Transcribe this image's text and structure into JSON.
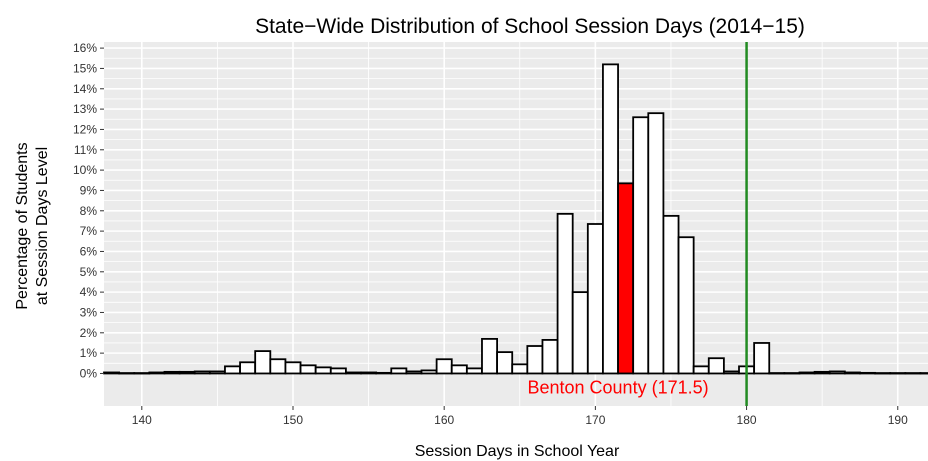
{
  "chart_data": {
    "type": "bar",
    "title": "State−Wide Distribution of School Session Days (2014−15)",
    "xlabel": "Session Days in School Year",
    "ylabel_lines": [
      "Percentage of Students",
      "at Session Days Level"
    ],
    "xlim": [
      137.5,
      192
    ],
    "ylim": [
      -1.6,
      16.3
    ],
    "x_ticks": [
      140,
      150,
      160,
      170,
      180,
      190
    ],
    "y_ticks": [
      0,
      1,
      2,
      3,
      4,
      5,
      6,
      7,
      8,
      9,
      10,
      11,
      12,
      13,
      14,
      15,
      16
    ],
    "y_tick_labels": [
      "0%",
      "1%",
      "2%",
      "3%",
      "4%",
      "5%",
      "6%",
      "7%",
      "8%",
      "9%",
      "10%",
      "11%",
      "12%",
      "13%",
      "14%",
      "15%",
      "16%"
    ],
    "bin_width": 1,
    "bins": [
      {
        "x": 138,
        "value": 0.05
      },
      {
        "x": 139,
        "value": 0.02
      },
      {
        "x": 140,
        "value": 0.02
      },
      {
        "x": 141,
        "value": 0.05
      },
      {
        "x": 142,
        "value": 0.08
      },
      {
        "x": 143,
        "value": 0.08
      },
      {
        "x": 144,
        "value": 0.1
      },
      {
        "x": 145,
        "value": 0.1
      },
      {
        "x": 146,
        "value": 0.35
      },
      {
        "x": 147,
        "value": 0.55
      },
      {
        "x": 148,
        "value": 1.1
      },
      {
        "x": 149,
        "value": 0.7
      },
      {
        "x": 150,
        "value": 0.55
      },
      {
        "x": 151,
        "value": 0.4
      },
      {
        "x": 152,
        "value": 0.3
      },
      {
        "x": 153,
        "value": 0.25
      },
      {
        "x": 154,
        "value": 0.05
      },
      {
        "x": 155,
        "value": 0.05
      },
      {
        "x": 156,
        "value": 0.03
      },
      {
        "x": 157,
        "value": 0.25
      },
      {
        "x": 158,
        "value": 0.1
      },
      {
        "x": 159,
        "value": 0.15
      },
      {
        "x": 160,
        "value": 0.7
      },
      {
        "x": 161,
        "value": 0.4
      },
      {
        "x": 162,
        "value": 0.25
      },
      {
        "x": 163,
        "value": 1.7
      },
      {
        "x": 164,
        "value": 1.05
      },
      {
        "x": 165,
        "value": 0.45
      },
      {
        "x": 166,
        "value": 1.35
      },
      {
        "x": 167,
        "value": 1.65
      },
      {
        "x": 168,
        "value": 7.85
      },
      {
        "x": 169,
        "value": 4.0
      },
      {
        "x": 170,
        "value": 7.35
      },
      {
        "x": 171,
        "value": 15.2
      },
      {
        "x": 172,
        "value": 9.35,
        "highlight": true
      },
      {
        "x": 173,
        "value": 12.6
      },
      {
        "x": 174,
        "value": 12.8
      },
      {
        "x": 175,
        "value": 7.75
      },
      {
        "x": 176,
        "value": 6.7
      },
      {
        "x": 177,
        "value": 0.35
      },
      {
        "x": 178,
        "value": 0.75
      },
      {
        "x": 179,
        "value": 0.1
      },
      {
        "x": 180,
        "value": 0.35
      },
      {
        "x": 181,
        "value": 1.5
      },
      {
        "x": 182,
        "value": 0.02
      },
      {
        "x": 183,
        "value": 0.02
      },
      {
        "x": 184,
        "value": 0.05
      },
      {
        "x": 185,
        "value": 0.08
      },
      {
        "x": 186,
        "value": 0.1
      },
      {
        "x": 187,
        "value": 0.05
      },
      {
        "x": 188,
        "value": 0.03
      },
      {
        "x": 189,
        "value": 0.02
      },
      {
        "x": 190,
        "value": 0.02
      },
      {
        "x": 191,
        "value": 0.02
      },
      {
        "x": 192,
        "value": 0.02
      }
    ],
    "reference_line": {
      "x": 180,
      "color": "#228B22"
    },
    "annotation": {
      "text": "Benton County (171.5)",
      "x": 171.5,
      "color": "#ff0000"
    },
    "colors": {
      "bar_fill": "#ffffff",
      "bar_outline": "#000000",
      "highlight_fill": "#ff0000",
      "panel": "#ebebeb",
      "grid": "#ffffff"
    }
  }
}
